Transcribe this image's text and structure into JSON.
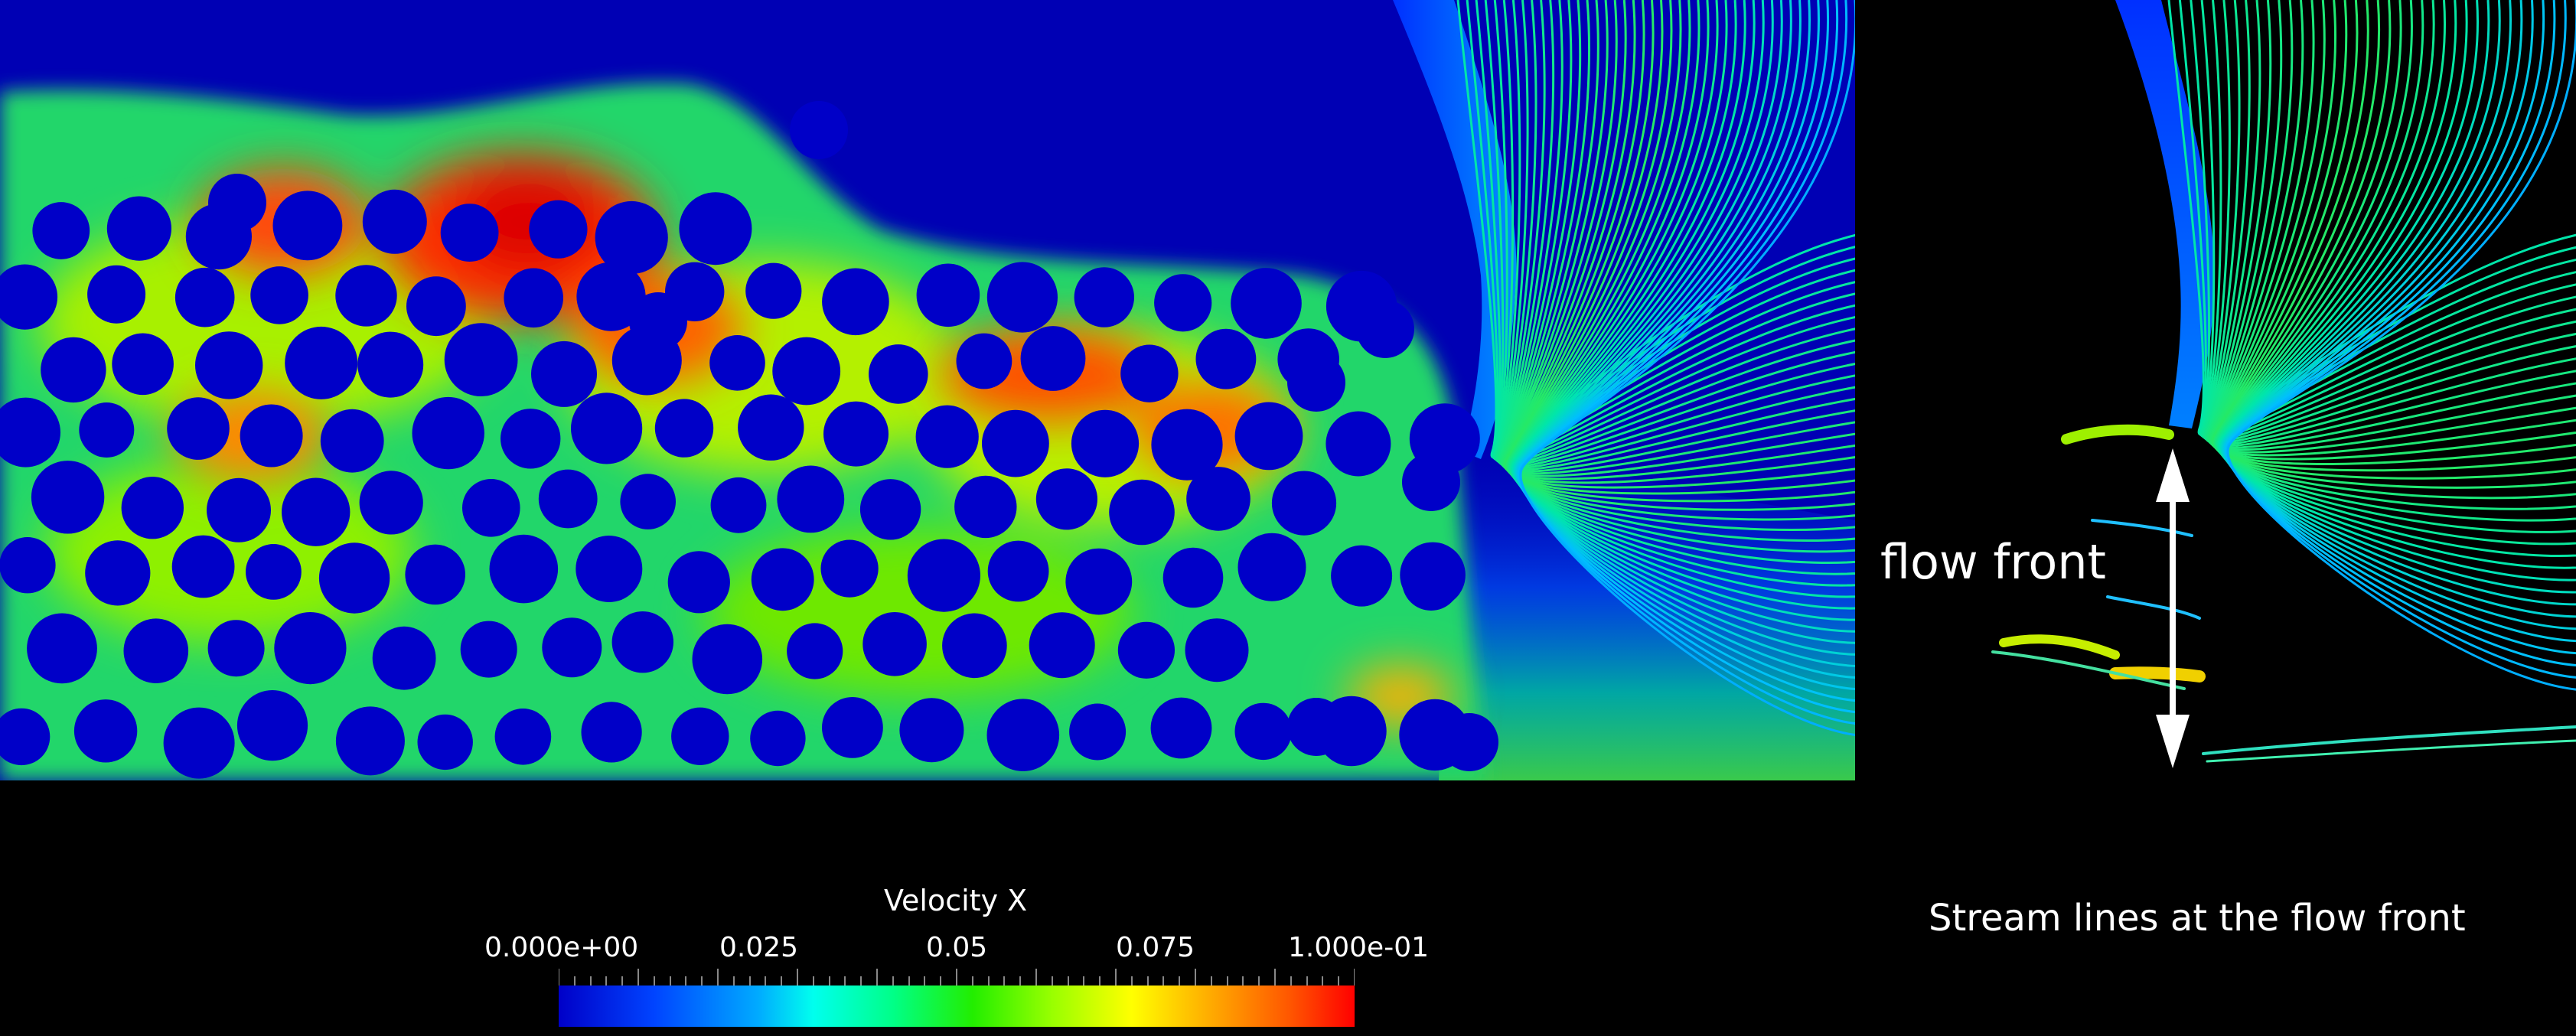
{
  "colorbar": {
    "title": "Velocity X",
    "ticks": [
      "0.000e+00",
      "0.025",
      "0.05",
      "0.075",
      "1.000e-01"
    ],
    "stops": [
      "#0000c8",
      "#0044ff",
      "#00aaff",
      "#00ffee",
      "#00ff88",
      "#22ee00",
      "#99ff00",
      "#ffff00",
      "#ffaa00",
      "#ff5500",
      "#ff0000"
    ]
  },
  "annotations": {
    "flow_front": "flow front",
    "caption": "Stream lines at the flow front"
  },
  "colors": {
    "background": "#000000",
    "fiber": "#0000c8",
    "arrow": "#ffffff"
  }
}
